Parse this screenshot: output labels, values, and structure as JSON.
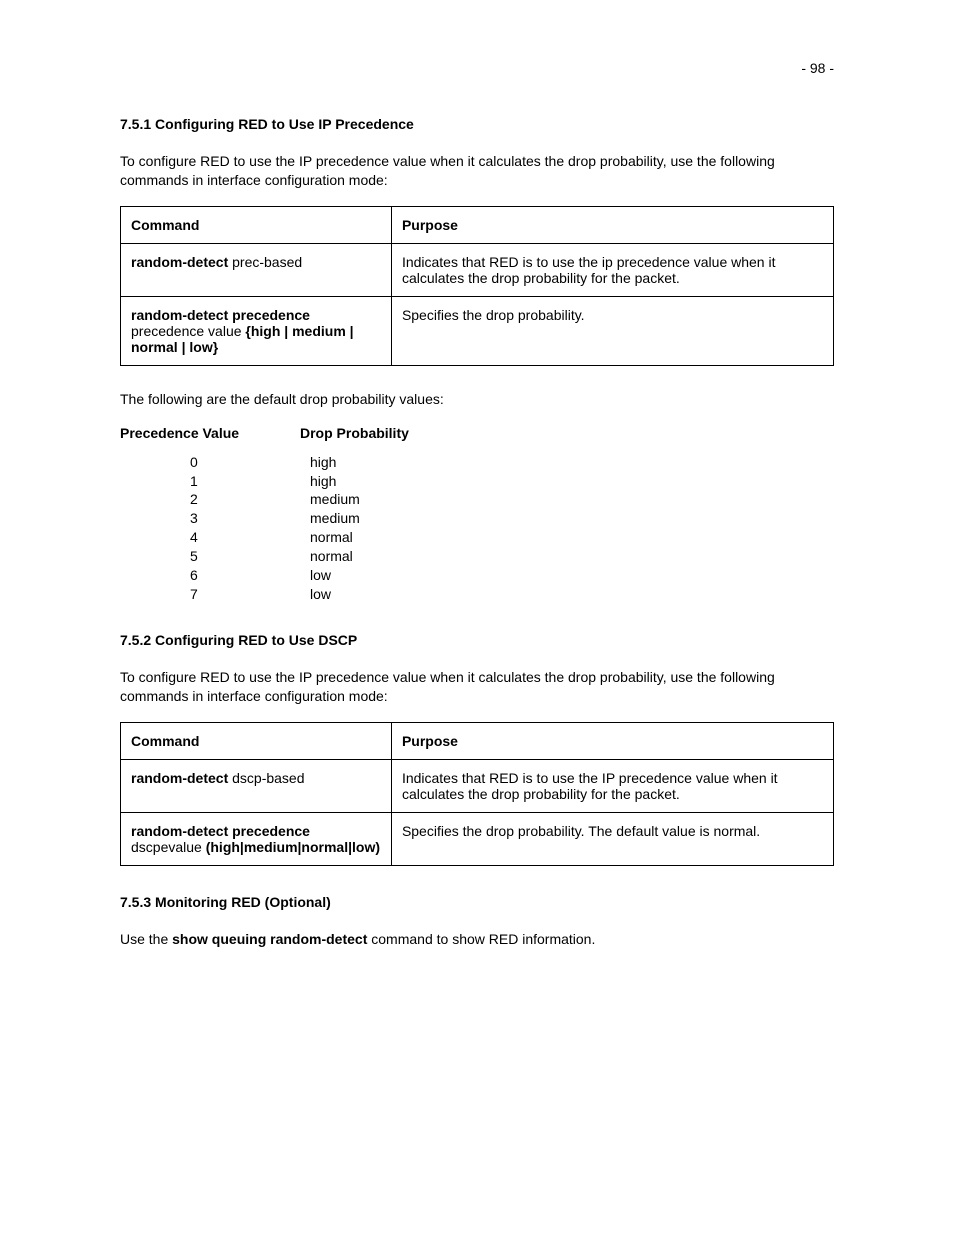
{
  "page_number": "- 98 -",
  "sections": {
    "s1": {
      "heading": "7.5.1 Configuring RED to Use IP Precedence",
      "intro": "To configure RED to use the IP precedence value when it calculates the drop probability, use the following commands in interface configuration mode:",
      "table": {
        "headers": {
          "command": "Command",
          "purpose": "Purpose"
        },
        "rows": [
          {
            "cmd_bold": "random-detect",
            "cmd_rest": " prec-based",
            "purpose": "Indicates that RED is to use the ip precedence value when it calculates the drop probability for the packet."
          },
          {
            "cmd_bold": "random-detect precedence",
            "cmd_rest": " precedence value ",
            "cmd_bold2": "{high | medium | normal | low}",
            "purpose": "Specifies the drop probability."
          }
        ]
      },
      "after_table": "The following are the default drop probability values:",
      "prec_table": {
        "headers": {
          "precedence": "Precedence Value",
          "drop": "Drop Probability"
        },
        "rows": [
          {
            "p": "0",
            "d": "high"
          },
          {
            "p": "1",
            "d": "high"
          },
          {
            "p": "2",
            "d": "medium"
          },
          {
            "p": "3",
            "d": "medium"
          },
          {
            "p": "4",
            "d": "normal"
          },
          {
            "p": "5",
            "d": "normal"
          },
          {
            "p": "6",
            "d": "low"
          },
          {
            "p": "7",
            "d": "low"
          }
        ]
      }
    },
    "s2": {
      "heading": "7.5.2 Configuring RED to Use DSCP",
      "intro": "To configure RED to use the IP precedence value when it calculates the drop probability, use the following commands in interface configuration mode:",
      "table": {
        "headers": {
          "command": "Command",
          "purpose": "Purpose"
        },
        "rows": [
          {
            "cmd_bold": "random-detect",
            "cmd_rest": " dscp-based",
            "purpose": "Indicates that RED is to use the IP precedence value when it calculates the drop probability for the packet."
          },
          {
            "cmd_bold": "random-detect precedence",
            "cmd_rest": " dscpevalue ",
            "cmd_bold2": "(high|medium|normal|low)",
            "purpose": "Specifies the drop probability. The default value is normal."
          }
        ]
      }
    },
    "s3": {
      "heading": "7.5.3 Monitoring RED (Optional)",
      "body_pre": " Use the ",
      "body_bold": "show queuing random-detect",
      "body_post": " command to show RED information."
    }
  }
}
